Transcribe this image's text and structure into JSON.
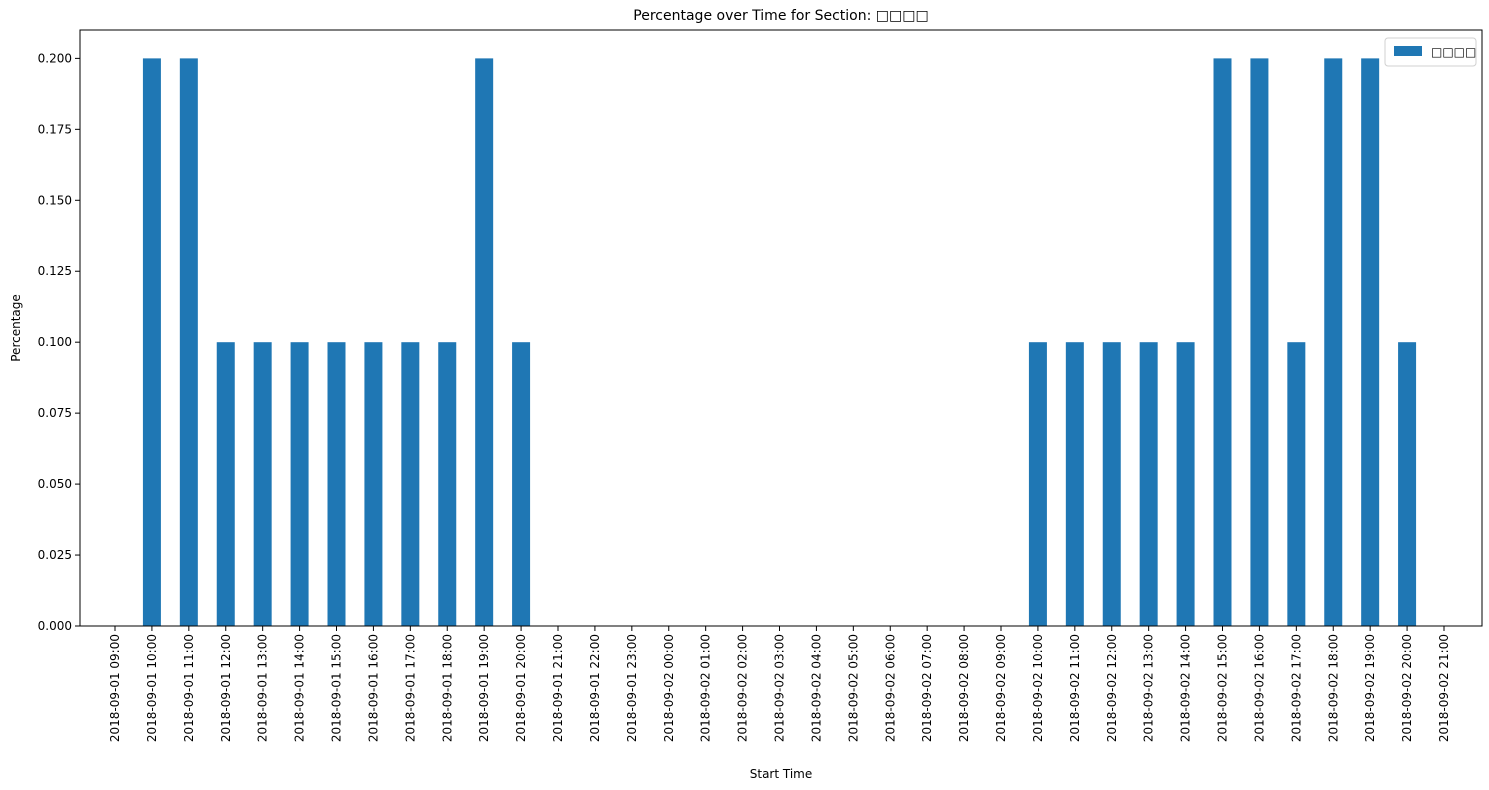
{
  "chart_data": {
    "type": "bar",
    "title": "Percentage over Time for Section: □□□□",
    "xlabel": "Start Time",
    "ylabel": "Percentage",
    "ylim": [
      0,
      0.21
    ],
    "yticks": [
      0.0,
      0.025,
      0.05,
      0.075,
      0.1,
      0.125,
      0.15,
      0.175,
      0.2
    ],
    "ytick_labels": [
      "0.000",
      "0.025",
      "0.050",
      "0.075",
      "0.100",
      "0.125",
      "0.150",
      "0.175",
      "0.200"
    ],
    "legend": {
      "position": "top-right",
      "label": "□□□□"
    },
    "categories": [
      "2018-09-01 09:00",
      "2018-09-01 10:00",
      "2018-09-01 11:00",
      "2018-09-01 12:00",
      "2018-09-01 13:00",
      "2018-09-01 14:00",
      "2018-09-01 15:00",
      "2018-09-01 16:00",
      "2018-09-01 17:00",
      "2018-09-01 18:00",
      "2018-09-01 19:00",
      "2018-09-01 20:00",
      "2018-09-01 21:00",
      "2018-09-01 22:00",
      "2018-09-01 23:00",
      "2018-09-02 00:00",
      "2018-09-02 01:00",
      "2018-09-02 02:00",
      "2018-09-02 03:00",
      "2018-09-02 04:00",
      "2018-09-02 05:00",
      "2018-09-02 06:00",
      "2018-09-02 07:00",
      "2018-09-02 08:00",
      "2018-09-02 09:00",
      "2018-09-02 10:00",
      "2018-09-02 11:00",
      "2018-09-02 12:00",
      "2018-09-02 13:00",
      "2018-09-02 14:00",
      "2018-09-02 15:00",
      "2018-09-02 16:00",
      "2018-09-02 17:00",
      "2018-09-02 18:00",
      "2018-09-02 19:00",
      "2018-09-02 20:00",
      "2018-09-02 21:00"
    ],
    "series": [
      {
        "name": "□□□□",
        "color": "#1f77b4",
        "values": [
          0.0,
          0.2,
          0.2,
          0.1,
          0.1,
          0.1,
          0.1,
          0.1,
          0.1,
          0.1,
          0.2,
          0.1,
          0.0,
          0.0,
          0.0,
          0.0,
          0.0,
          0.0,
          0.0,
          0.0,
          0.0,
          0.0,
          0.0,
          0.0,
          0.0,
          0.1,
          0.1,
          0.1,
          0.1,
          0.1,
          0.2,
          0.2,
          0.1,
          0.2,
          0.2,
          0.1,
          0.0
        ]
      }
    ]
  }
}
